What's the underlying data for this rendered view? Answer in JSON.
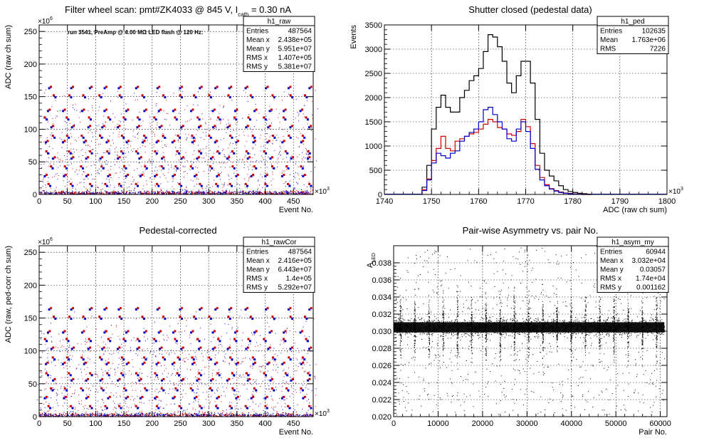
{
  "chart_data": [
    {
      "type": "scatter",
      "title_parts": [
        "Filter wheel scan: pmt#ZK4033 @   845 V, I",
        "cath",
        " = 0.30 nA"
      ],
      "subtitle": "run 3541, PreAmp @ 4.00 MΩ LED flash @  120 Hz:",
      "xlabel": "Event No.",
      "ylabel": "ADC (raw ch sum)",
      "x_exponent": "×10",
      "x_exponent_power": "3",
      "y_exponent": "×10",
      "y_exponent_power": "6",
      "xlim": [
        0,
        485
      ],
      "ylim": [
        0,
        260
      ],
      "xticks": [
        0,
        50,
        100,
        150,
        200,
        250,
        300,
        350,
        400,
        450
      ],
      "yticks": [
        0,
        50,
        100,
        150,
        200,
        250
      ],
      "grid": true,
      "stats": {
        "name": "h1_raw",
        "rows": [
          [
            "Entries",
            "487564"
          ],
          [
            "Mean x",
            "2.438e+05"
          ],
          [
            "Mean y",
            "5.951e+07"
          ],
          [
            "RMS x",
            "1.407e+05"
          ],
          [
            "RMS y",
            "5.381e+07"
          ]
        ]
      },
      "levels": [
        163,
        152,
        128,
        118,
        103,
        90,
        80,
        66,
        55,
        43,
        28,
        16
      ],
      "series": [
        {
          "color": "#0000cc"
        },
        {
          "color": "#cc0000"
        }
      ]
    },
    {
      "type": "line",
      "title": "Shutter closed (pedestal data)",
      "xlabel": "ADC (raw ch sum)",
      "ylabel": "Events",
      "x_exponent": "×10",
      "x_exponent_power": "3",
      "xlim": [
        1740,
        1800
      ],
      "ylim": [
        0,
        3500
      ],
      "xticks": [
        1740,
        1750,
        1760,
        1770,
        1780,
        1790,
        1800
      ],
      "yticks": [
        0,
        500,
        1000,
        1500,
        2000,
        2500,
        3000,
        3500
      ],
      "grid": true,
      "stats": {
        "name": "h1_ped",
        "rows": [
          [
            "Entries",
            "102635"
          ],
          [
            "Mean",
            "1.763e+06"
          ],
          [
            "RMS",
            "7226"
          ]
        ]
      },
      "x": [
        1748,
        1749,
        1750,
        1751,
        1752,
        1753,
        1754,
        1755,
        1756,
        1757,
        1758,
        1759,
        1760,
        1761,
        1762,
        1763,
        1764,
        1765,
        1766,
        1767,
        1768,
        1769,
        1770,
        1771,
        1772,
        1773,
        1774,
        1775,
        1776,
        1777,
        1778,
        1779,
        1780,
        1781,
        1782,
        1783
      ],
      "series": [
        {
          "color": "#000000",
          "values": [
            150,
            600,
            1350,
            1800,
            2050,
            1800,
            1700,
            1700,
            2000,
            2150,
            2350,
            2450,
            2600,
            2950,
            3300,
            3250,
            3050,
            2750,
            2300,
            2100,
            2450,
            2750,
            2750,
            2300,
            1550,
            850,
            500,
            380,
            280,
            180,
            100,
            60,
            40,
            25,
            15,
            5
          ]
        },
        {
          "color": "#cc0000",
          "values": [
            100,
            320,
            700,
            950,
            1200,
            950,
            900,
            1100,
            1150,
            1200,
            1250,
            1280,
            1350,
            1450,
            1550,
            1500,
            1380,
            1350,
            1250,
            1220,
            1300,
            1550,
            1400,
            1050,
            600,
            350,
            200,
            120,
            80,
            50,
            30,
            20,
            10,
            5,
            0,
            0
          ]
        },
        {
          "color": "#0000cc",
          "values": [
            80,
            300,
            650,
            850,
            800,
            750,
            850,
            900,
            1100,
            1200,
            1280,
            1350,
            1500,
            1750,
            1800,
            1650,
            1500,
            1350,
            1150,
            1100,
            1350,
            1500,
            1300,
            950,
            520,
            300,
            180,
            110,
            70,
            40,
            25,
            15,
            8,
            4,
            0,
            0
          ]
        }
      ]
    },
    {
      "type": "scatter",
      "title": "Pedestal-corrected",
      "xlabel": "Event No.",
      "ylabel": "ADC (raw, ped-corr ch sum)",
      "x_exponent": "×10",
      "x_exponent_power": "3",
      "y_exponent": "×10",
      "y_exponent_power": "6",
      "xlim": [
        0,
        485
      ],
      "ylim": [
        0,
        260
      ],
      "xticks": [
        0,
        50,
        100,
        150,
        200,
        250,
        300,
        350,
        400,
        450
      ],
      "yticks": [
        0,
        50,
        100,
        150,
        200,
        250
      ],
      "grid": true,
      "stats": {
        "name": "h1_rawCor",
        "rows": [
          [
            "Entries",
            "487564"
          ],
          [
            "Mean x",
            "2.416e+05"
          ],
          [
            "Mean y",
            "6.443e+07"
          ],
          [
            "RMS x",
            "1.4e+05"
          ],
          [
            "RMS y",
            "5.292e+07"
          ]
        ]
      },
      "levels": [
        163,
        152,
        128,
        118,
        103,
        90,
        80,
        66,
        55,
        43,
        28,
        16
      ],
      "series": [
        {
          "color": "#0000cc"
        },
        {
          "color": "#cc0000"
        }
      ]
    },
    {
      "type": "scatter",
      "title": "Pair-wise Asymmetry vs. pair No.",
      "xlabel": "Pair No.",
      "ylabel": "A",
      "ylabel_sub": "LED",
      "xlim": [
        0,
        61500
      ],
      "ylim": [
        0.02,
        0.04
      ],
      "xticks": [
        0,
        10000,
        20000,
        30000,
        40000,
        50000,
        60000
      ],
      "yticks": [
        0.02,
        0.022,
        0.024,
        0.026,
        0.028,
        0.03,
        0.032,
        0.034,
        0.036,
        0.038
      ],
      "grid": true,
      "stats": {
        "name": "h1_asym_my",
        "rows": [
          [
            "Entries",
            "60944"
          ],
          [
            "Mean x",
            "3.032e+04"
          ],
          [
            "Mean y",
            "0.03057"
          ],
          [
            "RMS x",
            "1.74e+04"
          ],
          [
            "RMS y",
            "0.001162"
          ]
        ]
      },
      "band_center": 0.0305,
      "spike_x": [
        1500,
        4700,
        7900,
        11100,
        14300,
        17500,
        20700,
        23900,
        27100,
        30300,
        33500,
        36700,
        39900,
        43100,
        46300,
        49500,
        52700,
        55900,
        59100
      ],
      "series": [
        {
          "color": "#000000"
        }
      ]
    }
  ]
}
